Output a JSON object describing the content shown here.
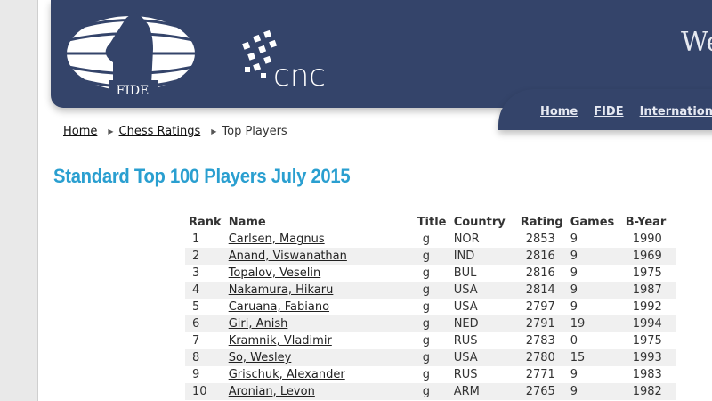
{
  "header": {
    "logo_fide": "FIDE",
    "logo_cnc": "cnc",
    "welcome": "We",
    "nav": [
      "Home",
      "FIDE",
      "International"
    ]
  },
  "breadcrumb": [
    "Home",
    "Chess Ratings",
    "Top Players"
  ],
  "page_title": "Standard Top 100 Players July 2015",
  "table": {
    "columns": [
      "Rank",
      "Name",
      "Title",
      "Country",
      "Rating",
      "Games",
      "B-Year"
    ],
    "rows": [
      [
        "1",
        "Carlsen, Magnus",
        "g",
        "NOR",
        "2853",
        "9",
        "1990"
      ],
      [
        "2",
        "Anand, Viswanathan",
        "g",
        "IND",
        "2816",
        "9",
        "1969"
      ],
      [
        "3",
        "Topalov, Veselin",
        "g",
        "BUL",
        "2816",
        "9",
        "1975"
      ],
      [
        "4",
        "Nakamura, Hikaru",
        "g",
        "USA",
        "2814",
        "9",
        "1987"
      ],
      [
        "5",
        "Caruana, Fabiano",
        "g",
        "USA",
        "2797",
        "9",
        "1992"
      ],
      [
        "6",
        "Giri, Anish",
        "g",
        "NED",
        "2791",
        "19",
        "1994"
      ],
      [
        "7",
        "Kramnik, Vladimir",
        "g",
        "RUS",
        "2783",
        "0",
        "1975"
      ],
      [
        "8",
        "So, Wesley",
        "g",
        "USA",
        "2780",
        "15",
        "1993"
      ],
      [
        "9",
        "Grischuk, Alexander",
        "g",
        "RUS",
        "2771",
        "9",
        "1983"
      ],
      [
        "10",
        "Aronian, Levon",
        "g",
        "ARM",
        "2765",
        "9",
        "1982"
      ]
    ]
  },
  "colors": {
    "banner": "#34446a",
    "title": "#2a9fd0",
    "row_alt": "#f0f0f0"
  }
}
